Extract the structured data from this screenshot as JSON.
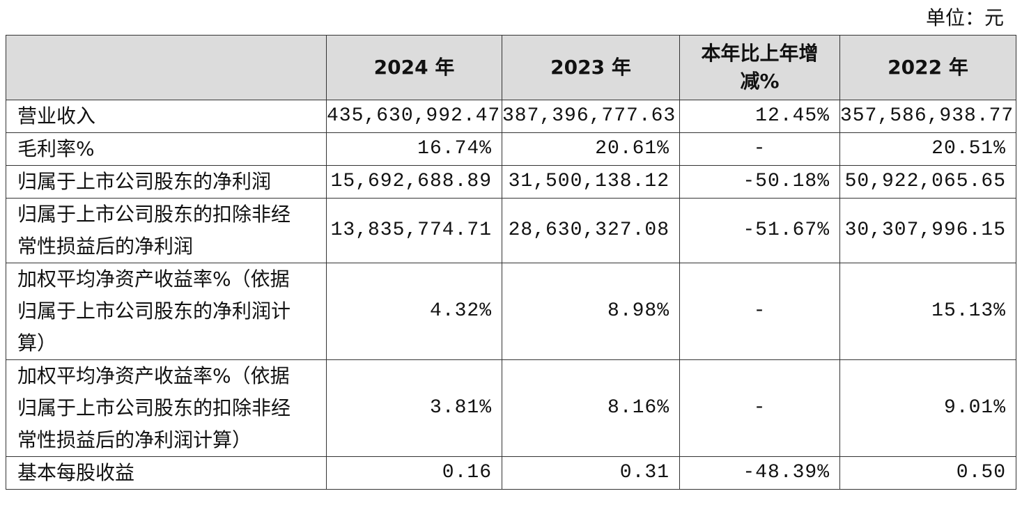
{
  "unit": "单位：元",
  "table": {
    "header": [
      "",
      "2024 年",
      "2023 年",
      "本年比上年增减%",
      "2022 年"
    ],
    "rows": [
      [
        "营业收入",
        "435,630,992.47",
        "387,396,777.63",
        "12.45%",
        "357,586,938.77"
      ],
      [
        "毛利率%",
        "16.74%",
        "20.61%",
        "-",
        "20.51%"
      ],
      [
        "归属于上市公司股东的净利润",
        "15,692,688.89",
        "31,500,138.12",
        "-50.18%",
        "50,922,065.65"
      ],
      [
        "归属于上市公司股东的扣除非经常性损益后的净利润",
        "13,835,774.71",
        "28,630,327.08",
        "-51.67%",
        "30,307,996.15"
      ],
      [
        "加权平均净资产收益率%（依据归属于上市公司股东的净利润计算）",
        "4.32%",
        "8.98%",
        "-",
        "15.13%"
      ],
      [
        "加权平均净资产收益率%（依据归属于上市公司股东的扣除非经常性损益后的净利润计算）",
        "3.81%",
        "8.16%",
        "-",
        "9.01%"
      ],
      [
        "基本每股收益",
        "0.16",
        "0.31",
        "-48.39%",
        "0.50"
      ]
    ]
  }
}
